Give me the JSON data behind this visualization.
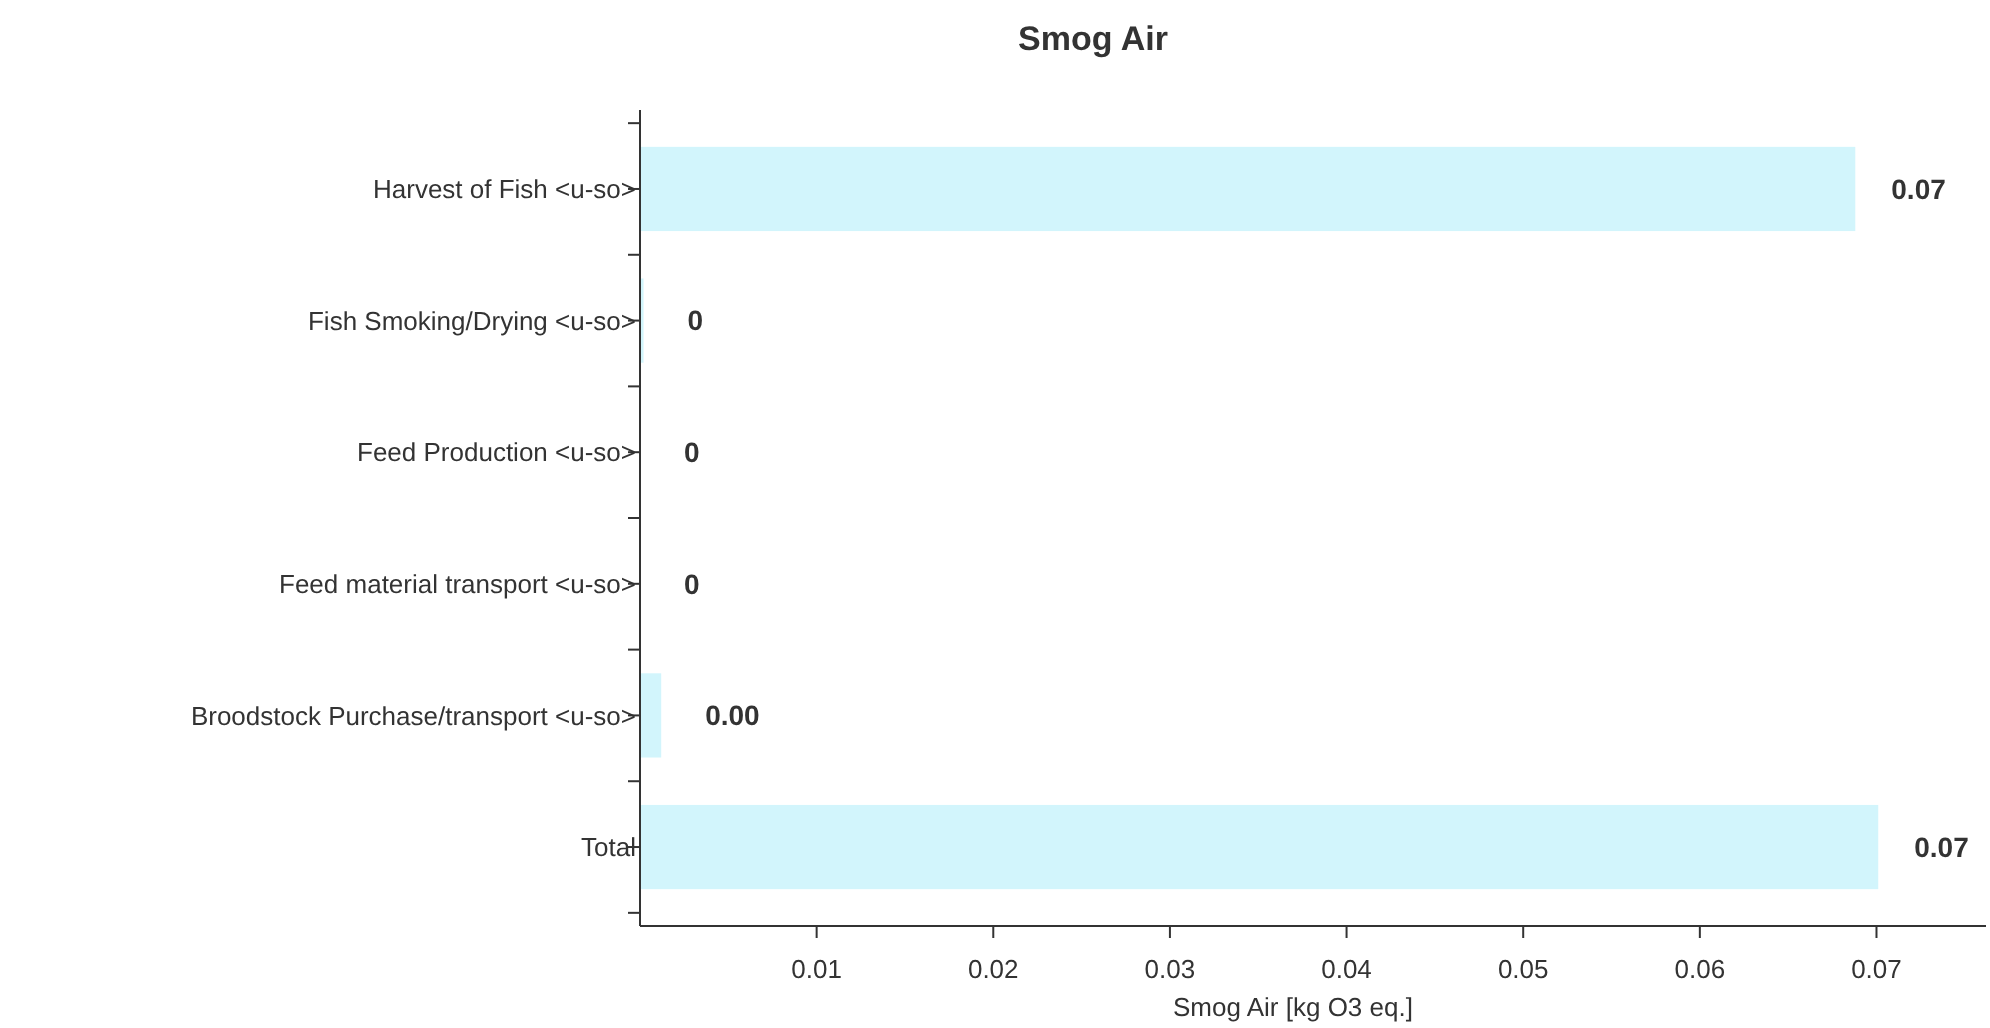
{
  "chart_data": {
    "type": "bar",
    "orientation": "horizontal",
    "title": "Smog Air",
    "xlabel": "Smog Air [kg O3 eq.]",
    "categories": [
      "Harvest of Fish <u-so>",
      "Fish Smoking/Drying <u-so>",
      "Feed Production <u-so>",
      "Feed material transport <u-so>",
      "Broodstock Purchase/transport <u-so>",
      "Total"
    ],
    "values": [
      0.0688,
      0.0002,
      0,
      0,
      0.0012,
      0.0701
    ],
    "value_labels": [
      "0.07",
      "0",
      "0",
      "0",
      "0.00",
      "0.07"
    ],
    "color": "#d2f5fc",
    "xlim": [
      0,
      0.0762
    ],
    "xticks": [
      0.01,
      0.02,
      0.03,
      0.04,
      0.05,
      0.06,
      0.07
    ],
    "grid": false
  }
}
